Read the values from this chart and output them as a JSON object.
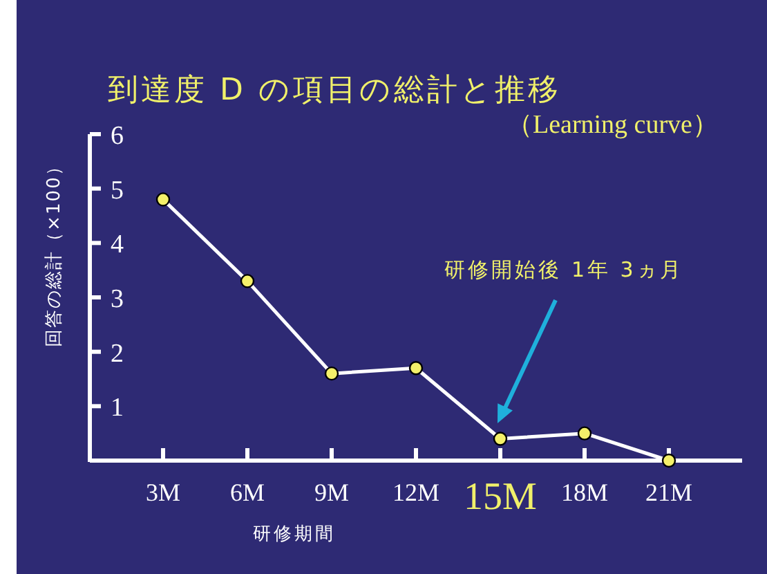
{
  "chart_data": {
    "type": "line",
    "title": "到達度 D の項目の総計と推移",
    "subtitle": "（Learning curve）",
    "xlabel": "研修期間",
    "ylabel": "回答の総計（×100）",
    "categories": [
      "3M",
      "6M",
      "9M",
      "12M",
      "15M",
      "18M",
      "21M"
    ],
    "series": [
      {
        "color": "#ffffff",
        "values": [
          4.8,
          3.3,
          1.6,
          1.7,
          0.4,
          0.5,
          0
        ]
      }
    ],
    "ylim": [
      0,
      6
    ],
    "yticks": [
      1,
      2,
      3,
      4,
      5,
      6
    ],
    "marker": "circle",
    "line_style": "solid",
    "annotations": [
      "研修開始後 1年 3ヵ月"
    ]
  }
}
